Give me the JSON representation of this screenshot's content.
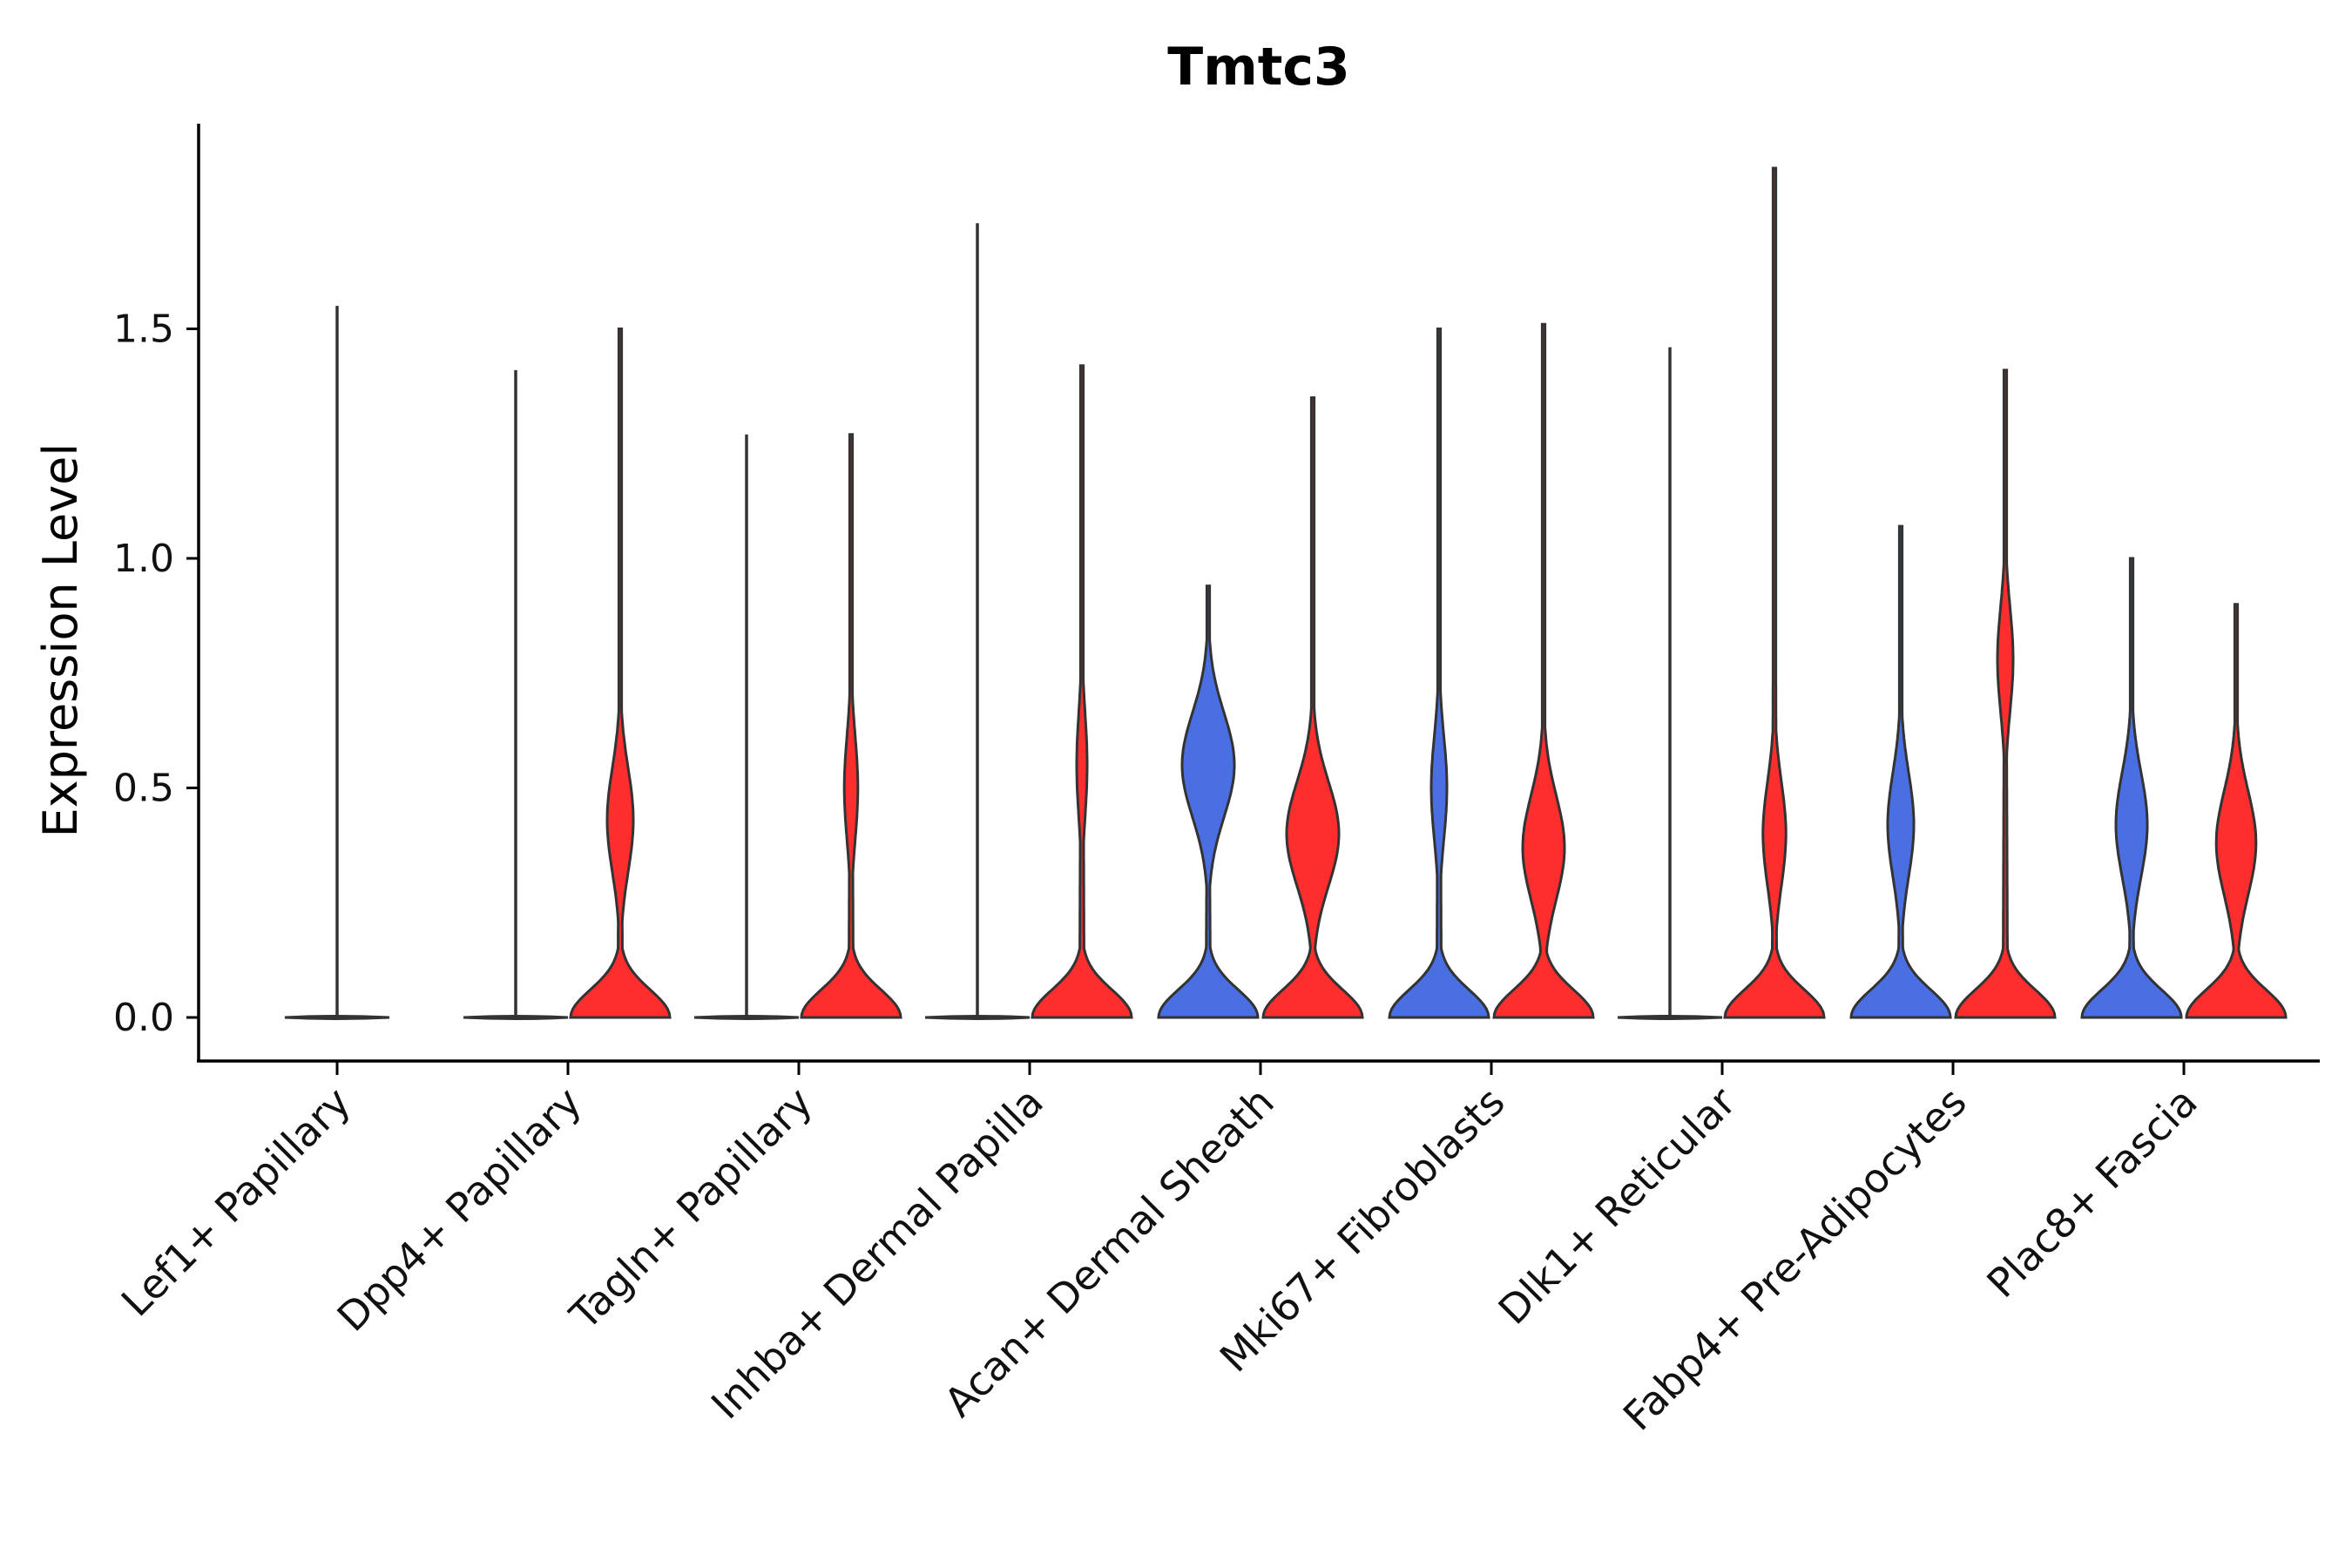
{
  "chart_data": {
    "type": "violin",
    "title": "Tmtc3",
    "xlabel": "",
    "ylabel": "Expression Level",
    "ylim": [
      -0.09,
      1.95
    ],
    "yticks": [
      0.0,
      0.5,
      1.0,
      1.5
    ],
    "ytick_labels": [
      "0.0",
      "0.5",
      "1.0",
      "1.5"
    ],
    "grid": false,
    "legend": "none",
    "colors": {
      "group_a": "#4A6FE3",
      "group_b": "#FF2E2E",
      "outline": "#333333"
    },
    "categories": [
      {
        "label": "Lef1+ Papillary",
        "violins": [
          {
            "group": "a",
            "max": 1.55,
            "shape": "flat"
          }
        ]
      },
      {
        "label": "Dpp4+ Papillary",
        "violins": [
          {
            "group": "a",
            "max": 1.41,
            "shape": "flat"
          },
          {
            "group": "b",
            "max": 1.5,
            "peak": 0.43,
            "peak_width": 0.25,
            "base_width": 0.95
          }
        ]
      },
      {
        "label": "Tagln+ Papillary",
        "violins": [
          {
            "group": "a",
            "max": 1.27,
            "shape": "flat"
          },
          {
            "group": "b",
            "max": 1.27,
            "peak": 0.5,
            "peak_width": 0.13,
            "base_width": 0.95
          }
        ]
      },
      {
        "label": "Inhba+ Dermal Papilla",
        "violins": [
          {
            "group": "a",
            "max": 1.73,
            "shape": "flat"
          },
          {
            "group": "b",
            "max": 1.42,
            "peak": 0.55,
            "peak_width": 0.1,
            "base_width": 0.95
          }
        ]
      },
      {
        "label": "Acan+ Dermal Sheath",
        "violins": [
          {
            "group": "a",
            "max": 0.94,
            "peak": 0.55,
            "peak_width": 0.5,
            "base_width": 0.95
          },
          {
            "group": "b",
            "max": 1.35,
            "peak": 0.4,
            "peak_width": 0.5,
            "base_width": 0.95
          }
        ]
      },
      {
        "label": "Mki67+ Fibroblasts",
        "violins": [
          {
            "group": "a",
            "max": 1.5,
            "peak": 0.5,
            "peak_width": 0.15,
            "base_width": 0.95
          },
          {
            "group": "b",
            "max": 1.51,
            "peak": 0.37,
            "peak_width": 0.4,
            "base_width": 0.95
          }
        ]
      },
      {
        "label": "Dlk1+ Reticular",
        "violins": [
          {
            "group": "a",
            "max": 1.46,
            "shape": "flat"
          },
          {
            "group": "b",
            "max": 1.85,
            "peak": 0.4,
            "peak_width": 0.22,
            "base_width": 0.95
          }
        ]
      },
      {
        "label": "Fabp4+ Pre-Adipocytes",
        "violins": [
          {
            "group": "a",
            "max": 1.07,
            "peak": 0.42,
            "peak_width": 0.25,
            "base_width": 0.95
          },
          {
            "group": "b",
            "max": 1.41,
            "peak": 0.78,
            "peak_width": 0.15,
            "base_width": 0.95
          }
        ]
      },
      {
        "label": "Plac8+ Fascia",
        "violins": [
          {
            "group": "a",
            "max": 1.0,
            "peak": 0.42,
            "peak_width": 0.3,
            "base_width": 0.95
          },
          {
            "group": "b",
            "max": 0.9,
            "peak": 0.38,
            "peak_width": 0.38,
            "base_width": 0.95
          }
        ]
      }
    ]
  }
}
